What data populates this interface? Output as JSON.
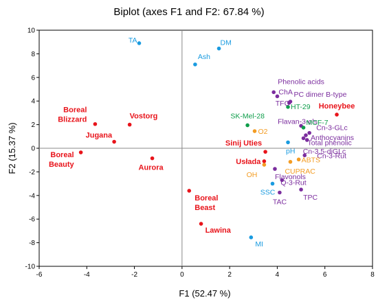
{
  "chart_data": {
    "type": "scatter",
    "title": "Biplot (axes F1 and F2: 67.84 %)",
    "xlabel": "F1 (52.47 %)",
    "ylabel": "F2 (15.37 %)",
    "xlim": [
      -6,
      8
    ],
    "ylim": [
      -10,
      10
    ],
    "x_ticks": [
      -6,
      -4,
      -2,
      0,
      2,
      4,
      6,
      8
    ],
    "y_ticks": [
      -10,
      -8,
      -6,
      -4,
      -2,
      0,
      2,
      4,
      6,
      8,
      10
    ],
    "grid": false,
    "colors": {
      "cultivar": "#e8141b",
      "purple": "#7b2d9e",
      "blue": "#1a9be0",
      "green": "#0e9d4a",
      "orange": "#f39c23"
    },
    "points": [
      {
        "label": "TA",
        "x": -1.8,
        "y": 8.9,
        "color": "blue"
      },
      {
        "label": "DM",
        "x": 1.55,
        "y": 8.45,
        "color": "blue"
      },
      {
        "label": "Ash",
        "x": 0.55,
        "y": 7.1,
        "color": "blue"
      },
      {
        "label": "Boreal Blizzard",
        "x": -3.65,
        "y": 2.05,
        "color": "cultivar"
      },
      {
        "label": "Vostorg",
        "x": -2.2,
        "y": 2.0,
        "color": "cultivar"
      },
      {
        "label": "Jugana",
        "x": -2.85,
        "y": 0.55,
        "color": "cultivar"
      },
      {
        "label": "Boreal Beauty",
        "x": -4.25,
        "y": -0.35,
        "color": "cultivar"
      },
      {
        "label": "Aurora",
        "x": -1.25,
        "y": -0.85,
        "color": "cultivar"
      },
      {
        "label": "Phenolic acids",
        "x": 3.85,
        "y": 4.75,
        "color": "purple"
      },
      {
        "label": "ChA",
        "x": 4.0,
        "y": 4.4,
        "color": "purple"
      },
      {
        "label": "TFC",
        "x": 4.5,
        "y": 3.85,
        "color": "purple"
      },
      {
        "label": "PC dimer B-type",
        "x": 4.55,
        "y": 3.95,
        "color": "purple"
      },
      {
        "label": "HT-29",
        "x": 4.45,
        "y": 3.5,
        "color": "green"
      },
      {
        "label": "Honeybee",
        "x": 6.5,
        "y": 2.85,
        "color": "cultivar"
      },
      {
        "label": "SK-Mel-28",
        "x": 2.75,
        "y": 1.95,
        "color": "green"
      },
      {
        "label": "O2",
        "x": 3.05,
        "y": 1.45,
        "color": "orange"
      },
      {
        "label": "Flavan-3-ols",
        "x": 5.0,
        "y": 1.9,
        "color": "purple"
      },
      {
        "label": "MCF-7",
        "x": 5.1,
        "y": 1.75,
        "color": "green"
      },
      {
        "label": "Cn-3-GLc",
        "x": 5.35,
        "y": 1.3,
        "color": "purple"
      },
      {
        "label": "Anthocyanins",
        "x": 5.2,
        "y": 1.1,
        "color": "purple"
      },
      {
        "label": "Total phenolic",
        "x": 5.1,
        "y": 0.85,
        "color": "purple"
      },
      {
        "label": "pH",
        "x": 4.45,
        "y": 0.5,
        "color": "blue"
      },
      {
        "label": "Sinij Uties",
        "x": 3.5,
        "y": -0.3,
        "color": "cultivar"
      },
      {
        "label": "Cn-3,5-diGLc",
        "x": 5.25,
        "y": 0.7,
        "color": "purple"
      },
      {
        "label": "Cn-3-Rut",
        "x": 5.15,
        "y": -0.6,
        "color": "purple"
      },
      {
        "label": "ABTS",
        "x": 4.9,
        "y": -0.95,
        "color": "orange"
      },
      {
        "label": "Usłada",
        "x": 3.45,
        "y": -1.1,
        "color": "cultivar"
      },
      {
        "label": "OH",
        "x": 3.45,
        "y": -1.4,
        "color": "orange"
      },
      {
        "label": "CUPRAC",
        "x": 4.55,
        "y": -1.15,
        "color": "orange"
      },
      {
        "label": "Flavonols",
        "x": 3.9,
        "y": -1.75,
        "color": "purple"
      },
      {
        "label": "Q-3-Rut",
        "x": 4.2,
        "y": -2.7,
        "color": "purple"
      },
      {
        "label": "SSC",
        "x": 3.8,
        "y": -3.0,
        "color": "blue"
      },
      {
        "label": "TAC",
        "x": 4.1,
        "y": -3.75,
        "color": "purple"
      },
      {
        "label": "TPC",
        "x": 5.0,
        "y": -3.5,
        "color": "purple"
      },
      {
        "label": "Boreal Beast",
        "x": 0.3,
        "y": -3.6,
        "color": "cultivar"
      },
      {
        "label": "Lawina",
        "x": 0.8,
        "y": -6.4,
        "color": "cultivar"
      },
      {
        "label": "MI",
        "x": 2.9,
        "y": -7.55,
        "color": "blue"
      }
    ]
  }
}
